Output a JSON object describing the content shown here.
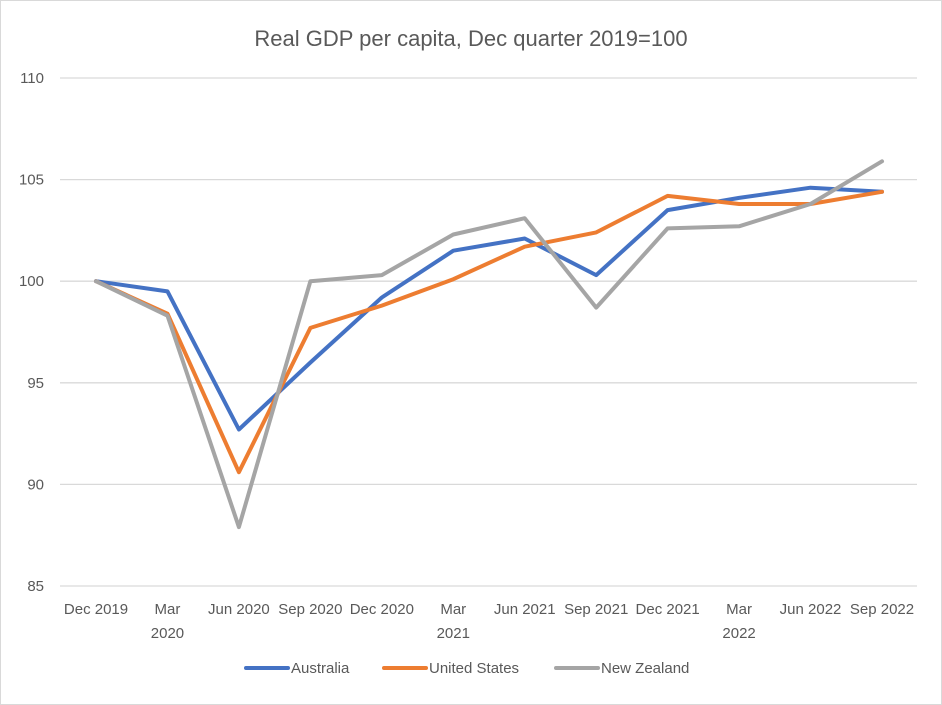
{
  "chart_data": {
    "type": "line",
    "title": "Real GDP per capita, Dec quarter 2019=100",
    "xlabel": "",
    "ylabel": "",
    "ylim": [
      85,
      110
    ],
    "yticks": [
      85,
      90,
      95,
      100,
      105,
      110
    ],
    "grid": true,
    "legend_position": "bottom",
    "categories": [
      [
        "Dec 2019"
      ],
      [
        "Mar",
        "2020"
      ],
      [
        "Jun 2020"
      ],
      [
        "Sep 2020"
      ],
      [
        "Dec 2020"
      ],
      [
        "Mar",
        "2021"
      ],
      [
        "Jun 2021"
      ],
      [
        "Sep 2021"
      ],
      [
        "Dec 2021"
      ],
      [
        "Mar",
        "2022"
      ],
      [
        "Jun 2022"
      ],
      [
        "Sep 2022"
      ]
    ],
    "series": [
      {
        "name": "Australia",
        "color": "#4472c4",
        "values": [
          100,
          99.5,
          92.7,
          96.0,
          99.2,
          101.5,
          102.1,
          100.3,
          103.5,
          104.1,
          104.6,
          104.4
        ]
      },
      {
        "name": "United States",
        "color": "#ed7d31",
        "values": [
          100,
          98.4,
          90.6,
          97.7,
          98.8,
          100.1,
          101.7,
          102.4,
          104.2,
          103.8,
          103.8,
          104.4
        ]
      },
      {
        "name": "New Zealand",
        "color": "#a5a5a5",
        "values": [
          100,
          98.3,
          87.9,
          100.0,
          100.3,
          102.3,
          103.1,
          98.7,
          102.6,
          102.7,
          103.8,
          105.9
        ]
      }
    ]
  }
}
